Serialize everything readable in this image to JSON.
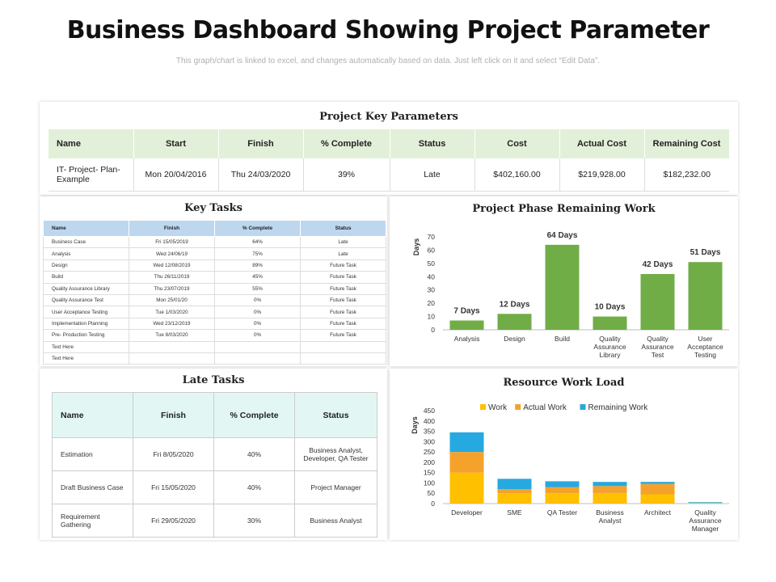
{
  "header": {
    "title": "Business Dashboard Showing Project Parameter",
    "subtitle": "This graph/chart is linked to excel, and changes automatically based on data. Just left click on it and select “Edit Data”."
  },
  "project_params": {
    "title": "Project Key Parameters",
    "columns": [
      "Name",
      "Start",
      "Finish",
      "% Complete",
      "Status",
      "Cost",
      "Actual Cost",
      "Remaining Cost"
    ],
    "row": [
      "IT- Project- Plan- Example",
      "Mon 20/04/2016",
      "Thu 24/03/2020",
      "39%",
      "Late",
      "$402,160.00",
      "$219,928.00",
      "$182,232.00"
    ]
  },
  "key_tasks": {
    "title": "Key Tasks",
    "columns": [
      "Name",
      "Finish",
      "% Complete",
      "Status"
    ],
    "rows": [
      [
        "Business Case",
        "Fri 15/05/2019",
        "64%",
        "Late"
      ],
      [
        "Analysis",
        "Wed 24/06/19",
        "75%",
        "Late"
      ],
      [
        "Design",
        "Wed 12/08/2019",
        "89%",
        "Future Task"
      ],
      [
        "Build",
        "Thu 26/11/2019",
        "45%",
        "Future Task"
      ],
      [
        "Quality Assurance Library",
        "Thu 23/07/2019",
        "55%",
        "Future Task"
      ],
      [
        "Quality Assurance Test",
        "Mon 25/01/20",
        "0%",
        "Future Task"
      ],
      [
        "User Acceptance Testing",
        "Tue 1/03/2020",
        "0%",
        "Future Task"
      ],
      [
        "Implementation Planning",
        "Wed 23/12/2019",
        "0%",
        "Future Task"
      ],
      [
        "Pre- Production Testing",
        "Tue 8/03/2020",
        "0%",
        "Future Task"
      ],
      [
        "Text Here",
        "",
        "",
        ""
      ],
      [
        "Text Here",
        "",
        "",
        ""
      ]
    ]
  },
  "late_tasks": {
    "title": "Late Tasks",
    "columns": [
      "Name",
      "Finish",
      "% Complete",
      "Status"
    ],
    "rows": [
      [
        "Estimation",
        "Fri 8/05/2020",
        "40%",
        "Business Analyst, Developer, QA Tester"
      ],
      [
        "Draft Business Case",
        "Fri 15/05/2020",
        "40%",
        "Project Manager"
      ],
      [
        "Requirement Gathering",
        "Fri 29/05/2020",
        "30%",
        "Business Analyst"
      ]
    ]
  },
  "chart_data": [
    {
      "type": "bar",
      "title": "Project Phase Remaining Work",
      "ylabel": "Days",
      "xlabel": "",
      "ylim": [
        0,
        70
      ],
      "yticks": [
        0,
        10,
        20,
        30,
        40,
        50,
        60,
        70
      ],
      "categories": [
        "Analysis",
        "Design",
        "Build",
        "Quality Assurance Library",
        "Quality Assurance Test",
        "User Acceptance Testing"
      ],
      "values": [
        7,
        12,
        64,
        10,
        42,
        51
      ],
      "data_labels": [
        "7 Days",
        "12 Days",
        "64 Days",
        "10 Days",
        "42 Days",
        "51 Days"
      ],
      "color": "#70ad47",
      "grid": false
    },
    {
      "type": "bar",
      "stacked": true,
      "title": "Resource Work Load",
      "ylabel": "Days",
      "xlabel": "",
      "ylim": [
        0,
        450
      ],
      "yticks": [
        0,
        50,
        100,
        150,
        200,
        250,
        300,
        350,
        400,
        450
      ],
      "categories": [
        "Developer",
        "SME",
        "QA Tester",
        "Business Analyst",
        "Architect",
        "Quality Assurance Manager"
      ],
      "series": [
        {
          "name": "Work",
          "color": "#ffc000",
          "values": [
            150,
            50,
            50,
            50,
            45,
            3
          ]
        },
        {
          "name": "Actual Work",
          "color": "#f4a22b",
          "values": [
            100,
            20,
            30,
            35,
            50,
            0
          ]
        },
        {
          "name": "Remaining Work",
          "color": "#26a9e0",
          "values": [
            95,
            50,
            28,
            20,
            10,
            4
          ]
        }
      ],
      "legend": "top",
      "grid": false
    }
  ]
}
